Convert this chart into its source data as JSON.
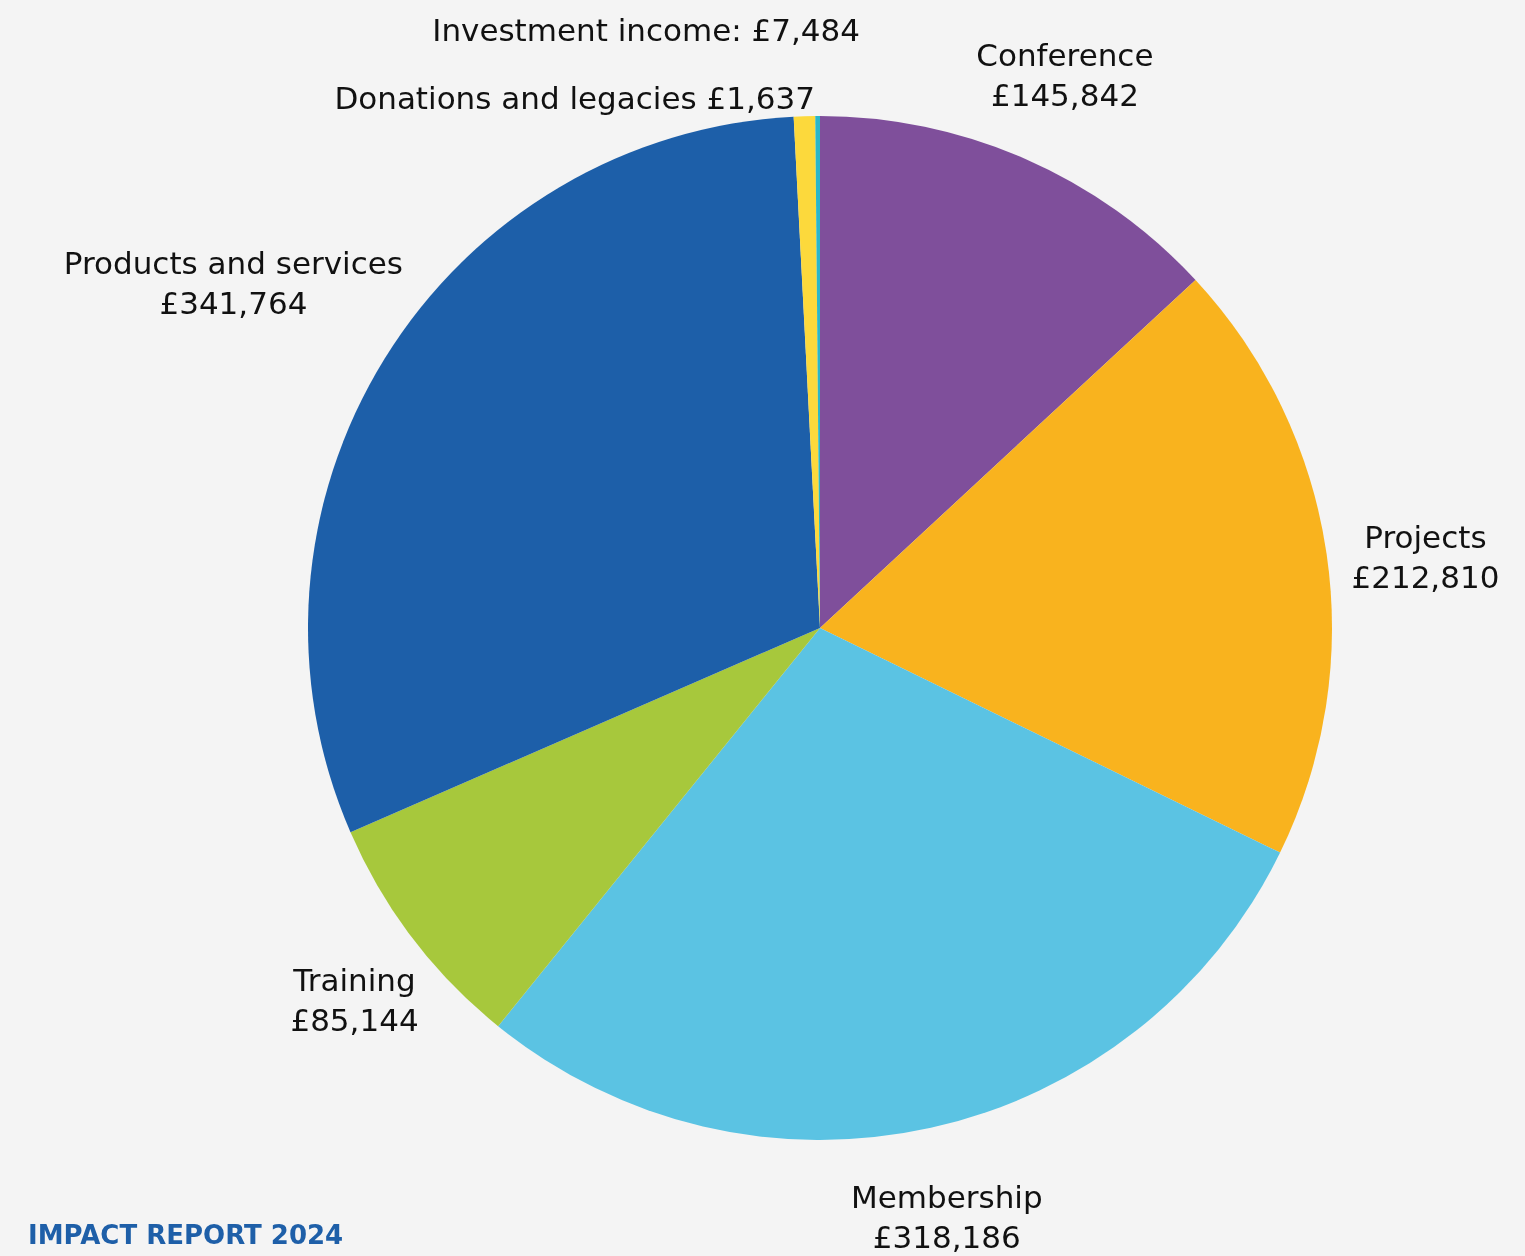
{
  "chart_data": {
    "type": "pie",
    "categories": [
      "Conference",
      "Projects",
      "Membership",
      "Training",
      "Products and services",
      "Investment income",
      "Donations and legacies"
    ],
    "values": [
      145842,
      212810,
      318186,
      85144,
      341764,
      7484,
      1637
    ],
    "colors": [
      "#7f4f9b",
      "#f9b31e",
      "#5bc3e3",
      "#a7c83c",
      "#1d5fa9",
      "#fcd93c",
      "#2ab7c9"
    ],
    "value_labels": [
      "£145,842",
      "£212,810",
      "£318,186",
      "£85,144",
      "£341,764",
      "£7,484",
      "£1,637"
    ],
    "annotations": [
      "IMPACT REPORT 2024"
    ]
  }
}
